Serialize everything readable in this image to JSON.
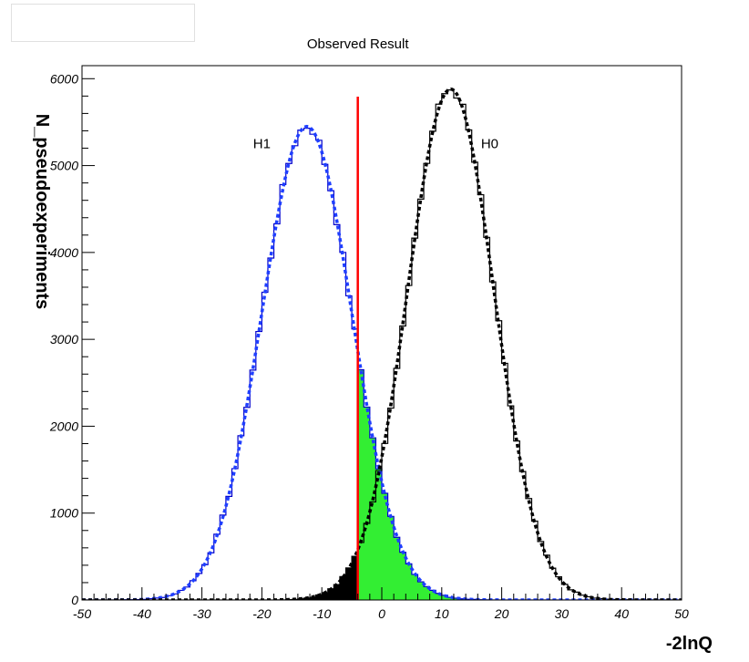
{
  "chart_data": {
    "type": "histogram",
    "title": "",
    "xlabel": "-2lnQ",
    "ylabel": "N_pseudoexperiments",
    "xlim": [
      -50,
      50
    ],
    "ylim": [
      0,
      6150
    ],
    "xticks": [
      -50,
      -40,
      -30,
      -20,
      -10,
      0,
      10,
      20,
      30,
      40,
      50
    ],
    "xtick_labels": [
      "-50",
      "-40",
      "-30",
      "-20",
      "-10",
      "0",
      "10",
      "20",
      "30",
      "40",
      "50"
    ],
    "yticks": [
      0,
      1000,
      2000,
      3000,
      4000,
      5000,
      6000
    ],
    "ytick_labels": [
      "0",
      "1000",
      "2000",
      "3000",
      "4000",
      "5000",
      "6000"
    ],
    "series": [
      {
        "name": "H1",
        "distribution": "gaussian",
        "mean": -12.5,
        "peak": 5450,
        "sigma": 7.5,
        "histogram_color": "#0000cc",
        "fit_color": "#1f3fff"
      },
      {
        "name": "H0",
        "distribution": "gaussian",
        "mean": 11.5,
        "peak": 5880,
        "sigma": 7.2,
        "histogram_color": "#000000",
        "fit_color": "#000000"
      }
    ],
    "observed_result": {
      "label": "Observed Result",
      "x": -4,
      "color": "#ff0000"
    },
    "shaded_regions": [
      {
        "series": "H1",
        "range": [
          -4,
          50
        ],
        "color": "#33ee33"
      },
      {
        "series": "H0",
        "range": [
          -50,
          -4
        ],
        "color": "#000000"
      }
    ],
    "annotations": [
      {
        "text": "H1",
        "x": -20,
        "y": 5200
      },
      {
        "text": "H0",
        "x": 18,
        "y": 5200
      },
      {
        "text": "Observed Result",
        "x": -4,
        "y": 6350
      }
    ],
    "grid": false,
    "legend": "none"
  }
}
